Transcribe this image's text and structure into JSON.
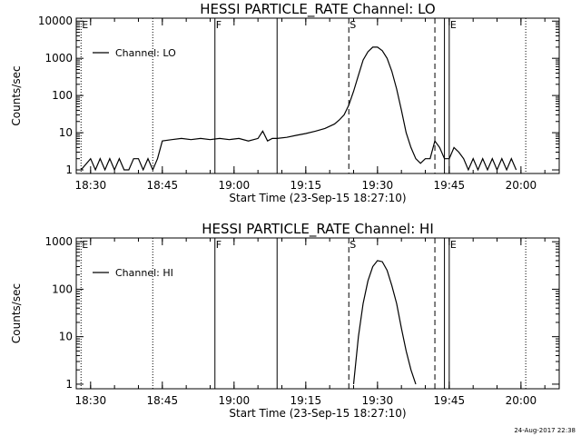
{
  "footer_stamp": "24-Aug-2017 22:38",
  "chart_data": [
    {
      "type": "line",
      "title": "HESSI PARTICLE_RATE Channel: LO",
      "xlabel": "Start Time (23-Sep-15 18:27:10)",
      "ylabel": "Counts/sec",
      "yscale": "log",
      "xlim": [
        "18:27",
        "20:08"
      ],
      "ylim": [
        0.8,
        12000
      ],
      "x_ticks": [
        "18:30",
        "18:45",
        "19:00",
        "19:15",
        "19:30",
        "19:45",
        "20:00"
      ],
      "y_ticks": [
        "1",
        "10",
        "100",
        "1000",
        "10000"
      ],
      "legend": {
        "label": "Channel: LO",
        "position": "top-left"
      },
      "markers": [
        {
          "time": "18:28",
          "style": "dotted",
          "label": "E"
        },
        {
          "time": "18:43",
          "style": "dotted",
          "label": ""
        },
        {
          "time": "18:56",
          "style": "solid",
          "label": "F"
        },
        {
          "time": "19:09",
          "style": "solid",
          "label": ""
        },
        {
          "time": "19:24",
          "style": "dashed",
          "label": "S"
        },
        {
          "time": "19:42",
          "style": "dashed",
          "label": ""
        },
        {
          "time": "19:44",
          "style": "solid",
          "label": ""
        },
        {
          "time": "19:45",
          "style": "solid",
          "label": "E"
        },
        {
          "time": "20:01",
          "style": "dotted",
          "label": ""
        }
      ],
      "series": [
        {
          "name": "Channel: LO",
          "x": [
            "18:28",
            "18:30",
            "18:31",
            "18:32",
            "18:33",
            "18:34",
            "18:35",
            "18:36",
            "18:37",
            "18:38",
            "18:39",
            "18:40",
            "18:41",
            "18:42",
            "18:43",
            "18:44",
            "18:45",
            "18:47",
            "18:49",
            "18:51",
            "18:53",
            "18:55",
            "18:57",
            "18:59",
            "19:01",
            "19:03",
            "19:05",
            "19:06",
            "19:07",
            "19:08",
            "19:09",
            "19:11",
            "19:13",
            "19:15",
            "19:17",
            "19:19",
            "19:21",
            "19:22",
            "19:23",
            "19:24",
            "19:25",
            "19:26",
            "19:27",
            "19:28",
            "19:29",
            "19:30",
            "19:31",
            "19:32",
            "19:33",
            "19:34",
            "19:35",
            "19:36",
            "19:37",
            "19:38",
            "19:39",
            "19:40",
            "19:41",
            "19:42",
            "19:43",
            "19:44",
            "19:45",
            "19:46",
            "19:47",
            "19:48",
            "19:49",
            "19:50",
            "19:51",
            "19:52",
            "19:53",
            "19:54",
            "19:55",
            "19:56",
            "19:57",
            "19:58",
            "19:59"
          ],
          "values": [
            1,
            2,
            1,
            2,
            1,
            2,
            1,
            2,
            1,
            1,
            2,
            2,
            1,
            2,
            1,
            2,
            6,
            6.5,
            7,
            6.5,
            7,
            6.5,
            7,
            6.5,
            7,
            6,
            7,
            11,
            6,
            7,
            7,
            7.5,
            8.5,
            9.5,
            11,
            13,
            17,
            22,
            30,
            55,
            130,
            350,
            900,
            1500,
            2000,
            2000,
            1600,
            1000,
            450,
            150,
            40,
            10,
            4,
            2,
            1.5,
            2,
            2,
            6,
            4,
            2,
            2,
            4,
            3,
            2,
            1,
            2,
            1,
            2,
            1,
            2,
            1,
            2,
            1,
            2,
            1
          ]
        }
      ]
    },
    {
      "type": "line",
      "title": "HESSI PARTICLE_RATE Channel: HI",
      "xlabel": "Start Time (23-Sep-15 18:27:10)",
      "ylabel": "Counts/sec",
      "yscale": "log",
      "xlim": [
        "18:27",
        "20:08"
      ],
      "ylim": [
        0.8,
        1200
      ],
      "x_ticks": [
        "18:30",
        "18:45",
        "19:00",
        "19:15",
        "19:30",
        "19:45",
        "20:00"
      ],
      "y_ticks": [
        "1",
        "10",
        "100",
        "1000"
      ],
      "legend": {
        "label": "Channel: HI",
        "position": "top-left"
      },
      "markers": [
        {
          "time": "18:28",
          "style": "dotted",
          "label": "E"
        },
        {
          "time": "18:43",
          "style": "dotted",
          "label": ""
        },
        {
          "time": "18:56",
          "style": "solid",
          "label": "F"
        },
        {
          "time": "19:09",
          "style": "solid",
          "label": ""
        },
        {
          "time": "19:24",
          "style": "dashed",
          "label": "S"
        },
        {
          "time": "19:42",
          "style": "dashed",
          "label": ""
        },
        {
          "time": "19:44",
          "style": "solid",
          "label": ""
        },
        {
          "time": "19:45",
          "style": "solid",
          "label": "E"
        },
        {
          "time": "20:01",
          "style": "dotted",
          "label": ""
        }
      ],
      "series": [
        {
          "name": "Channel: HI",
          "x": [
            "19:25",
            "19:26",
            "19:27",
            "19:28",
            "19:29",
            "19:30",
            "19:31",
            "19:32",
            "19:33",
            "19:34",
            "19:35",
            "19:36",
            "19:37",
            "19:38"
          ],
          "values": [
            1,
            10,
            50,
            150,
            300,
            400,
            380,
            250,
            120,
            50,
            15,
            5,
            2,
            1
          ]
        }
      ]
    }
  ]
}
